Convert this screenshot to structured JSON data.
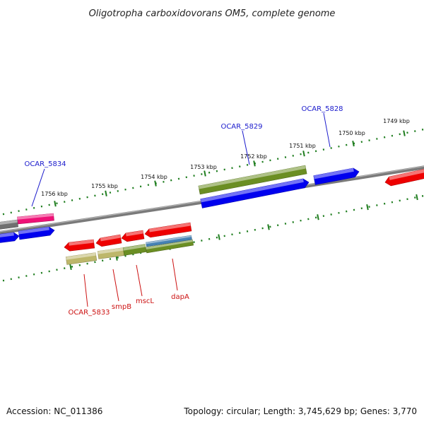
{
  "title": "Oligotropha carboxidovorans OM5, complete genome",
  "footer": {
    "accession": "Accession: NC_011386",
    "topology": "Topology: circular; Length: 3,745,629 bp; Genes: 3,770"
  },
  "colors": {
    "backbone": "#808080",
    "tick": "#1e7d1e",
    "forward_gene": "#0000ee",
    "reverse_gene": "#ee0000",
    "pink_gene": "#ee1177",
    "olive_gene": "#6b8e23",
    "khaki_gene": "#bdb76b",
    "steelblue_gene": "#4682b4",
    "label_blue": "#1a1acc",
    "label_red": "#cc1111"
  },
  "kbp_labels": [
    "1749 kbp",
    "1750 kbp",
    "1751 kbp",
    "1752 kbp",
    "1753 kbp",
    "1754 kbp",
    "1755 kbp",
    "1756 kbp"
  ],
  "gene_labels_top": [
    "OCAR_5828",
    "OCAR_5829",
    "OCAR_5834"
  ],
  "gene_labels_bottom": [
    "OCAR_5833",
    "smpB",
    "mscL",
    "dapA"
  ]
}
